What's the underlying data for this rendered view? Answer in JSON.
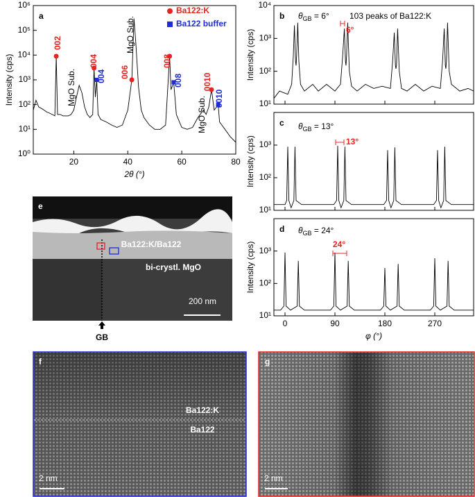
{
  "chart_data": [
    {
      "type": "line",
      "label": "a",
      "xlabel": "2θ (°)",
      "ylabel": "Intensity (cps)",
      "log_y": true,
      "color": "#000000",
      "xlim": [
        5,
        80
      ],
      "xticks": [
        20,
        40,
        60,
        80
      ],
      "ylim": [
        1,
        1000000
      ],
      "yticks": [
        {
          "value": 1,
          "label": "10⁰"
        },
        {
          "value": 10,
          "label": "10¹"
        },
        {
          "value": 100,
          "label": "10²"
        },
        {
          "value": 1000,
          "label": "10³"
        },
        {
          "value": 10000,
          "label": "10⁴"
        },
        {
          "value": 100000,
          "label": "10⁵"
        },
        {
          "value": 1000000,
          "label": "10⁶"
        }
      ],
      "x": [
        5,
        6,
        7,
        8,
        9,
        10,
        11,
        12,
        13,
        13.5,
        14,
        15,
        16,
        17,
        18,
        19,
        20,
        21,
        22,
        23,
        24,
        25,
        26,
        27,
        27.5,
        28,
        28.5,
        29,
        30,
        32,
        34,
        36,
        38,
        40,
        41.5,
        42.3,
        43,
        44,
        45,
        46,
        48,
        50,
        52,
        54,
        55.5,
        56,
        57,
        58,
        60,
        62,
        64,
        66,
        68,
        69,
        70,
        71,
        72,
        73.5,
        74,
        76,
        78,
        80
      ],
      "values": [
        60,
        150,
        80,
        70,
        60,
        50,
        45,
        40,
        35,
        9000,
        40,
        40,
        35,
        35,
        35,
        40,
        60,
        200,
        600,
        300,
        80,
        40,
        30,
        40,
        3000,
        200,
        1000,
        40,
        25,
        20,
        15,
        12,
        15,
        60,
        1000,
        300000,
        30000,
        500,
        60,
        30,
        15,
        10,
        10,
        15,
        9000,
        400,
        800,
        40,
        12,
        10,
        12,
        30,
        60,
        40,
        80,
        400,
        60,
        100,
        20,
        10,
        5,
        3
      ],
      "legend": "upper right",
      "series": [
        {
          "name": "Ba122:K",
          "color": "#e8221f",
          "marker": "circle",
          "x": [
            13.5,
            27.5,
            41.5,
            55.5,
            71
          ],
          "values": [
            9000,
            3000,
            1000,
            9000,
            400
          ]
        },
        {
          "name": "Ba122 buffer",
          "color": "#1f2bd6",
          "marker": "square",
          "x": [
            28.5,
            57,
            73.5
          ],
          "values": [
            1000,
            800,
            100
          ]
        }
      ],
      "annotations": [
        {
          "text": "002",
          "color": "#e8221f"
        },
        {
          "text": "004",
          "color": "#e8221f"
        },
        {
          "text": "004",
          "color": "#1f2bd6"
        },
        {
          "text": "006",
          "color": "#e8221f"
        },
        {
          "text": "008",
          "color": "#e8221f"
        },
        {
          "text": "008",
          "color": "#1f2bd6"
        },
        {
          "text": "0010",
          "color": "#e8221f"
        },
        {
          "text": "0010",
          "color": "#1f2bd6"
        },
        {
          "text": "MgO Sub.",
          "color": "#000000"
        },
        {
          "text": "MgO Sub.",
          "color": "#000000"
        },
        {
          "text": "MgO Sub.",
          "color": "#000000"
        }
      ]
    },
    {
      "type": "line",
      "label": "b",
      "ylabel": "Intensity (cps)",
      "log_y": true,
      "color": "#000000",
      "xlim": [
        -20,
        340
      ],
      "xticks": [
        0,
        90,
        180,
        270
      ],
      "ylim": [
        10,
        10000
      ],
      "yticks": [
        {
          "value": 10,
          "label": "10¹"
        },
        {
          "value": 100,
          "label": "10²"
        },
        {
          "value": 1000,
          "label": "10³"
        },
        {
          "value": 10000,
          "label": "10⁴"
        }
      ],
      "x": [
        -20,
        -10,
        5,
        12,
        15,
        17,
        19,
        20,
        21,
        23,
        25,
        28,
        35,
        50,
        60,
        75,
        90,
        100,
        104,
        107,
        109,
        110,
        111,
        113,
        116,
        120,
        130,
        145,
        160,
        175,
        190,
        194,
        197,
        199,
        200,
        201,
        203,
        206,
        210,
        220,
        235,
        250,
        265,
        280,
        284,
        287,
        289,
        290,
        291,
        293,
        296,
        300,
        315,
        330,
        340
      ],
      "values": [
        15,
        25,
        20,
        40,
        300,
        2500,
        200,
        150,
        300,
        3000,
        200,
        40,
        25,
        40,
        25,
        40,
        25,
        40,
        300,
        2000,
        200,
        150,
        300,
        3000,
        100,
        35,
        25,
        40,
        30,
        35,
        30,
        200,
        1500,
        150,
        120,
        150,
        2000,
        100,
        30,
        25,
        40,
        25,
        35,
        30,
        200,
        2000,
        150,
        120,
        200,
        3000,
        100,
        40,
        25,
        30,
        25
      ],
      "annotations": [
        {
          "text": "θ",
          "sub": "GB",
          "after": " = 6°",
          "color": "#000000"
        },
        {
          "text": "103 peaks of Ba122:K",
          "color": "#000000"
        },
        {
          "text": "6°",
          "color": "#e8221f"
        }
      ]
    },
    {
      "type": "line",
      "label": "c",
      "ylabel": "Intensity (cps)",
      "log_y": true,
      "color": "#000000",
      "xlim": [
        -20,
        340
      ],
      "xticks": [
        0,
        90,
        180,
        270
      ],
      "ylim": [
        10,
        10000
      ],
      "yticks": [
        {
          "value": 10,
          "label": "10¹"
        },
        {
          "value": 100,
          "label": "10²"
        },
        {
          "value": 1000,
          "label": "10³"
        }
      ],
      "x": [
        -20,
        0,
        3,
        5,
        7,
        11,
        16,
        18,
        20,
        30,
        60,
        88,
        93,
        95,
        97,
        101,
        106,
        108,
        110,
        120,
        150,
        178,
        183,
        185,
        187,
        191,
        196,
        198,
        200,
        210,
        240,
        268,
        273,
        275,
        277,
        281,
        286,
        288,
        290,
        300,
        340
      ],
      "values": [
        15,
        15,
        20,
        900,
        20,
        12,
        20,
        900,
        20,
        15,
        15,
        15,
        20,
        950,
        20,
        12,
        20,
        900,
        20,
        15,
        15,
        15,
        20,
        700,
        20,
        12,
        20,
        850,
        20,
        15,
        15,
        15,
        20,
        700,
        20,
        12,
        20,
        900,
        20,
        15,
        15
      ],
      "annotations": [
        {
          "text": "θ",
          "sub": "GB",
          "after": " = 13°",
          "color": "#000000"
        },
        {
          "text": "13°",
          "color": "#e8221f"
        }
      ]
    },
    {
      "type": "line",
      "label": "d",
      "xlabel": "φ (°)",
      "ylabel": "Intensity (cps)",
      "log_y": true,
      "color": "#000000",
      "xlim": [
        -20,
        340
      ],
      "xticks": [
        0,
        90,
        180,
        270
      ],
      "ylim": [
        10,
        10000
      ],
      "yticks": [
        {
          "value": 10,
          "label": "10¹"
        },
        {
          "value": 100,
          "label": "10²"
        },
        {
          "value": 1000,
          "label": "10³"
        }
      ],
      "x": [
        -20,
        -8,
        -2,
        0,
        2,
        10,
        22,
        24,
        26,
        35,
        60,
        82,
        88,
        90,
        92,
        100,
        112,
        114,
        116,
        125,
        150,
        172,
        178,
        180,
        182,
        190,
        202,
        204,
        206,
        215,
        240,
        262,
        268,
        270,
        272,
        280,
        292,
        294,
        296,
        305,
        340
      ],
      "values": [
        15,
        15,
        20,
        900,
        20,
        15,
        20,
        500,
        20,
        15,
        15,
        15,
        20,
        900,
        20,
        15,
        20,
        500,
        20,
        15,
        15,
        15,
        20,
        300,
        20,
        15,
        20,
        400,
        20,
        15,
        15,
        15,
        20,
        600,
        20,
        15,
        20,
        500,
        20,
        15,
        15
      ],
      "annotations": [
        {
          "text": "θ",
          "sub": "GB",
          "after": " = 24°",
          "color": "#000000"
        },
        {
          "text": "24°",
          "color": "#e8221f"
        }
      ]
    }
  ],
  "panels": {
    "e": {
      "letter": "e",
      "film": "Ba122:K/Ba122",
      "substrate": "bi-crystl. MgO",
      "scale": "200 nm",
      "gb": "GB"
    },
    "f": {
      "letter": "f",
      "upper": "Ba122:K",
      "lower": "Ba122",
      "scale": "2 nm"
    },
    "g": {
      "letter": "g",
      "scale": "2 nm"
    }
  }
}
